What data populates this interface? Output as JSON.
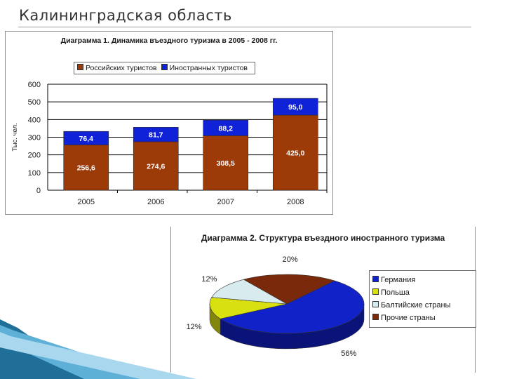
{
  "page": {
    "title": "Калининградская область"
  },
  "chart_data": [
    {
      "type": "bar",
      "stacked": true,
      "title": "Диаграмма 1. Динамика въездного туризма в 2005 - 2008 гг.",
      "ylabel": "Тыс. чел.",
      "xlabel": "",
      "categories": [
        "2005",
        "2006",
        "2007",
        "2008"
      ],
      "ylim": [
        0,
        600
      ],
      "yticks": [
        "0",
        "100",
        "200",
        "300",
        "400",
        "500",
        "600"
      ],
      "series": [
        {
          "name": "Российских туристов",
          "values": [
            256.6,
            274.6,
            308.5,
            425.0
          ],
          "labels": [
            "256,6",
            "274,6",
            "308,5",
            "425,0"
          ],
          "color": "#9c3a08"
        },
        {
          "name": "Иностранных туристов",
          "values": [
            76.4,
            81.7,
            88.2,
            95.0
          ],
          "labels": [
            "76,4",
            "81,7",
            "88,2",
            "95,0"
          ],
          "color": "#1022d8"
        }
      ],
      "grid": true,
      "legend_position": "top"
    },
    {
      "type": "pie",
      "title": "Диаграмма 2. Структура въездного иностранного туризма",
      "categories": [
        "Германия",
        "Польша",
        "Балтийские страны",
        "Прочие страны"
      ],
      "values": [
        56,
        12,
        12,
        20
      ],
      "labels": [
        "56%",
        "12%",
        "12%",
        "20%"
      ],
      "colors": [
        "#1022c8",
        "#d8e010",
        "#d8ecf0",
        "#7a2a0a"
      ],
      "legend_position": "right"
    }
  ]
}
